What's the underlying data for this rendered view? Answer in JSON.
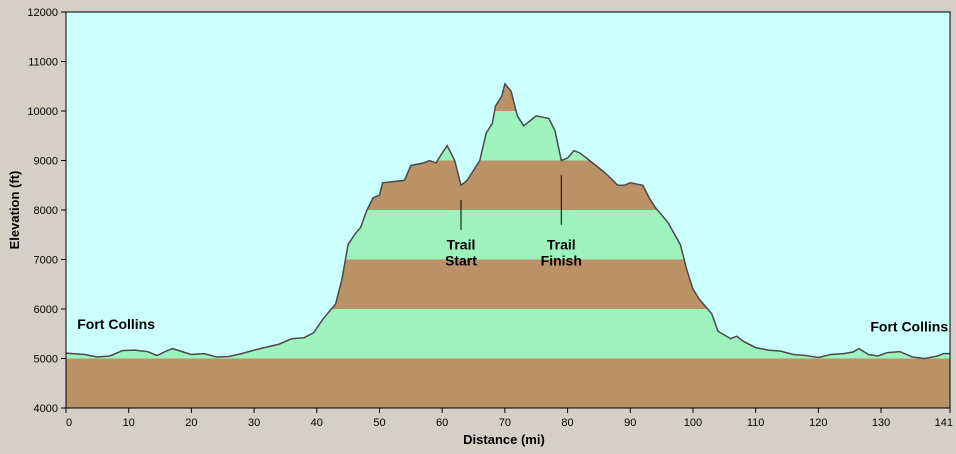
{
  "chart_data": {
    "type": "area",
    "xlabel": "Distance  (mi)",
    "ylabel": "Elevation (ft)",
    "xlim": [
      0,
      141
    ],
    "ylim": [
      4000,
      12000
    ],
    "x_ticks": [
      0,
      10,
      20,
      30,
      40,
      50,
      60,
      70,
      80,
      90,
      100,
      110,
      120,
      130,
      141
    ],
    "y_ticks": [
      4000,
      5000,
      6000,
      7000,
      8000,
      9000,
      10000,
      11000,
      12000
    ],
    "band_step": 1000,
    "colors": {
      "sky": "#ccffff",
      "band_brown": "#bb9166",
      "band_green": "#9ef2bd",
      "outline": "#4a4a4a",
      "frame": "#d4d0c8"
    },
    "profile": [
      [
        0,
        5110
      ],
      [
        3,
        5080
      ],
      [
        5,
        5030
      ],
      [
        7,
        5050
      ],
      [
        9,
        5160
      ],
      [
        11,
        5170
      ],
      [
        13,
        5140
      ],
      [
        14.5,
        5060
      ],
      [
        16,
        5150
      ],
      [
        17,
        5200
      ],
      [
        19,
        5120
      ],
      [
        20,
        5080
      ],
      [
        22,
        5100
      ],
      [
        24,
        5030
      ],
      [
        26,
        5040
      ],
      [
        28,
        5100
      ],
      [
        30,
        5170
      ],
      [
        32,
        5230
      ],
      [
        34,
        5290
      ],
      [
        36,
        5400
      ],
      [
        38,
        5420
      ],
      [
        39.5,
        5520
      ],
      [
        41,
        5800
      ],
      [
        43,
        6100
      ],
      [
        44,
        6600
      ],
      [
        45,
        7300
      ],
      [
        46,
        7500
      ],
      [
        47,
        7650
      ],
      [
        48,
        8000
      ],
      [
        49,
        8250
      ],
      [
        50,
        8300
      ],
      [
        50.5,
        8550
      ],
      [
        52,
        8570
      ],
      [
        54,
        8600
      ],
      [
        55,
        8900
      ],
      [
        57,
        8950
      ],
      [
        58,
        9000
      ],
      [
        59,
        8950
      ],
      [
        60,
        9150
      ],
      [
        60.8,
        9300
      ],
      [
        62,
        9000
      ],
      [
        63,
        8500
      ],
      [
        64,
        8600
      ],
      [
        65,
        8800
      ],
      [
        66,
        9000
      ],
      [
        67,
        9550
      ],
      [
        68,
        9750
      ],
      [
        68.5,
        10100
      ],
      [
        69.5,
        10300
      ],
      [
        70,
        10550
      ],
      [
        71,
        10400
      ],
      [
        72,
        9900
      ],
      [
        73,
        9700
      ],
      [
        74,
        9800
      ],
      [
        75,
        9900
      ],
      [
        77,
        9850
      ],
      [
        78,
        9600
      ],
      [
        79,
        9000
      ],
      [
        80,
        9050
      ],
      [
        81,
        9200
      ],
      [
        82,
        9150
      ],
      [
        83,
        9050
      ],
      [
        85,
        8850
      ],
      [
        86,
        8750
      ],
      [
        88,
        8500
      ],
      [
        89,
        8500
      ],
      [
        90,
        8550
      ],
      [
        92,
        8500
      ],
      [
        93,
        8250
      ],
      [
        94,
        8050
      ],
      [
        96,
        7750
      ],
      [
        98,
        7300
      ],
      [
        99,
        6800
      ],
      [
        100,
        6400
      ],
      [
        101,
        6200
      ],
      [
        103,
        5900
      ],
      [
        104,
        5550
      ],
      [
        106,
        5400
      ],
      [
        107,
        5450
      ],
      [
        108,
        5350
      ],
      [
        110,
        5220
      ],
      [
        112,
        5170
      ],
      [
        114,
        5150
      ],
      [
        116,
        5080
      ],
      [
        118,
        5060
      ],
      [
        120,
        5020
      ],
      [
        122,
        5080
      ],
      [
        124,
        5100
      ],
      [
        125.5,
        5130
      ],
      [
        126.5,
        5200
      ],
      [
        128,
        5080
      ],
      [
        129.5,
        5050
      ],
      [
        131,
        5120
      ],
      [
        133,
        5140
      ],
      [
        135,
        5030
      ],
      [
        137,
        5000
      ],
      [
        139,
        5050
      ],
      [
        140,
        5100
      ],
      [
        141,
        5100
      ]
    ],
    "annotations": [
      {
        "id": "fort-collins-left",
        "lines": [
          "Fort Collins"
        ],
        "x": 8,
        "y": 5600,
        "anchor": "middle"
      },
      {
        "id": "fort-collins-right",
        "lines": [
          "Fort Collins"
        ],
        "x": 134.5,
        "y": 5550,
        "anchor": "middle"
      },
      {
        "id": "trail-start",
        "lines": [
          "Trail",
          "Start"
        ],
        "x": 63,
        "y": 7200,
        "anchor": "middle",
        "marker": [
          63,
          7600,
          8200
        ]
      },
      {
        "id": "trail-finish",
        "lines": [
          "Trail",
          "Finish"
        ],
        "x": 79,
        "y": 7200,
        "anchor": "middle",
        "marker": [
          79,
          7700,
          8700
        ]
      }
    ]
  }
}
